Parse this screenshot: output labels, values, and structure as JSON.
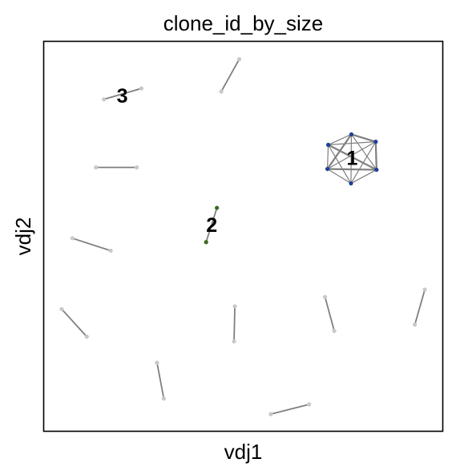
{
  "chart_data": {
    "type": "scatter",
    "title": "clone_id_by_size",
    "xlabel": "vdj1",
    "ylabel": "vdj2",
    "grid": false,
    "legend": "none",
    "x_ticks": [],
    "y_ticks": [],
    "xlim": [
      0,
      100
    ],
    "ylim": [
      0,
      100
    ],
    "colors": {
      "edge": "#7f7f7f",
      "node_default": "#c8c8c8",
      "clone_1": "#1f3f99",
      "clone_2": "#3a6b1e"
    },
    "clone_labels": [
      {
        "text": "1",
        "x": 77.2,
        "y": 70.2
      },
      {
        "text": "2",
        "x": 42.0,
        "y": 53.0
      },
      {
        "text": "3",
        "x": 19.6,
        "y": 86.2
      }
    ],
    "clones": [
      {
        "id": "1",
        "color": "#1f3f99",
        "nodes": [
          {
            "x": 77.0,
            "y": 76.2
          },
          {
            "x": 83.1,
            "y": 74.3
          },
          {
            "x": 71.2,
            "y": 73.5
          },
          {
            "x": 83.3,
            "y": 67.1
          },
          {
            "x": 71.0,
            "y": 67.3
          },
          {
            "x": 76.9,
            "y": 63.6
          }
        ],
        "edges": [
          [
            0,
            1
          ],
          [
            0,
            2
          ],
          [
            0,
            3
          ],
          [
            0,
            4
          ],
          [
            0,
            5
          ],
          [
            1,
            2
          ],
          [
            1,
            3
          ],
          [
            1,
            4
          ],
          [
            1,
            5
          ],
          [
            2,
            3
          ],
          [
            2,
            4
          ],
          [
            2,
            5
          ],
          [
            3,
            4
          ],
          [
            3,
            5
          ],
          [
            4,
            5
          ]
        ]
      },
      {
        "id": "2",
        "color": "#3a6b1e",
        "nodes": [
          {
            "x": 43.3,
            "y": 57.3
          },
          {
            "x": 40.6,
            "y": 48.5
          }
        ],
        "edges": [
          [
            0,
            1
          ]
        ]
      },
      {
        "id": "3",
        "color": "#c8c8c8",
        "nodes": [
          {
            "x": 15.0,
            "y": 85.2
          },
          {
            "x": 24.4,
            "y": 88.0
          }
        ],
        "edges": [
          [
            0,
            1
          ]
        ]
      },
      {
        "id": "",
        "color": "#c8c8c8",
        "nodes": [
          {
            "x": 48.9,
            "y": 95.5
          },
          {
            "x": 44.4,
            "y": 87.2
          }
        ],
        "edges": [
          [
            0,
            1
          ]
        ]
      },
      {
        "id": "",
        "color": "#c8c8c8",
        "nodes": [
          {
            "x": 13.0,
            "y": 67.7
          },
          {
            "x": 23.2,
            "y": 67.7
          }
        ],
        "edges": [
          [
            0,
            1
          ]
        ]
      },
      {
        "id": "",
        "color": "#c8c8c8",
        "nodes": [
          {
            "x": 7.1,
            "y": 49.5
          },
          {
            "x": 16.7,
            "y": 46.3
          }
        ],
        "edges": [
          [
            0,
            1
          ]
        ]
      },
      {
        "id": "",
        "color": "#c8c8c8",
        "nodes": [
          {
            "x": 4.4,
            "y": 31.3
          },
          {
            "x": 10.7,
            "y": 24.2
          }
        ],
        "edges": [
          [
            0,
            1
          ]
        ]
      },
      {
        "id": "",
        "color": "#c8c8c8",
        "nodes": [
          {
            "x": 47.8,
            "y": 32.0
          },
          {
            "x": 47.6,
            "y": 23.0
          }
        ],
        "edges": [
          [
            0,
            1
          ]
        ]
      },
      {
        "id": "",
        "color": "#c8c8c8",
        "nodes": [
          {
            "x": 70.4,
            "y": 34.4
          },
          {
            "x": 72.7,
            "y": 25.7
          }
        ],
        "edges": [
          [
            0,
            1
          ]
        ]
      },
      {
        "id": "",
        "color": "#c8c8c8",
        "nodes": [
          {
            "x": 95.4,
            "y": 36.3
          },
          {
            "x": 92.9,
            "y": 27.3
          }
        ],
        "edges": [
          [
            0,
            1
          ]
        ]
      },
      {
        "id": "",
        "color": "#c8c8c8",
        "nodes": [
          {
            "x": 28.3,
            "y": 17.5
          },
          {
            "x": 30.0,
            "y": 8.3
          }
        ],
        "edges": [
          [
            0,
            1
          ]
        ]
      },
      {
        "id": "",
        "color": "#c8c8c8",
        "nodes": [
          {
            "x": 56.8,
            "y": 4.3
          },
          {
            "x": 66.4,
            "y": 6.8
          }
        ],
        "edges": [
          [
            0,
            1
          ]
        ]
      }
    ]
  }
}
